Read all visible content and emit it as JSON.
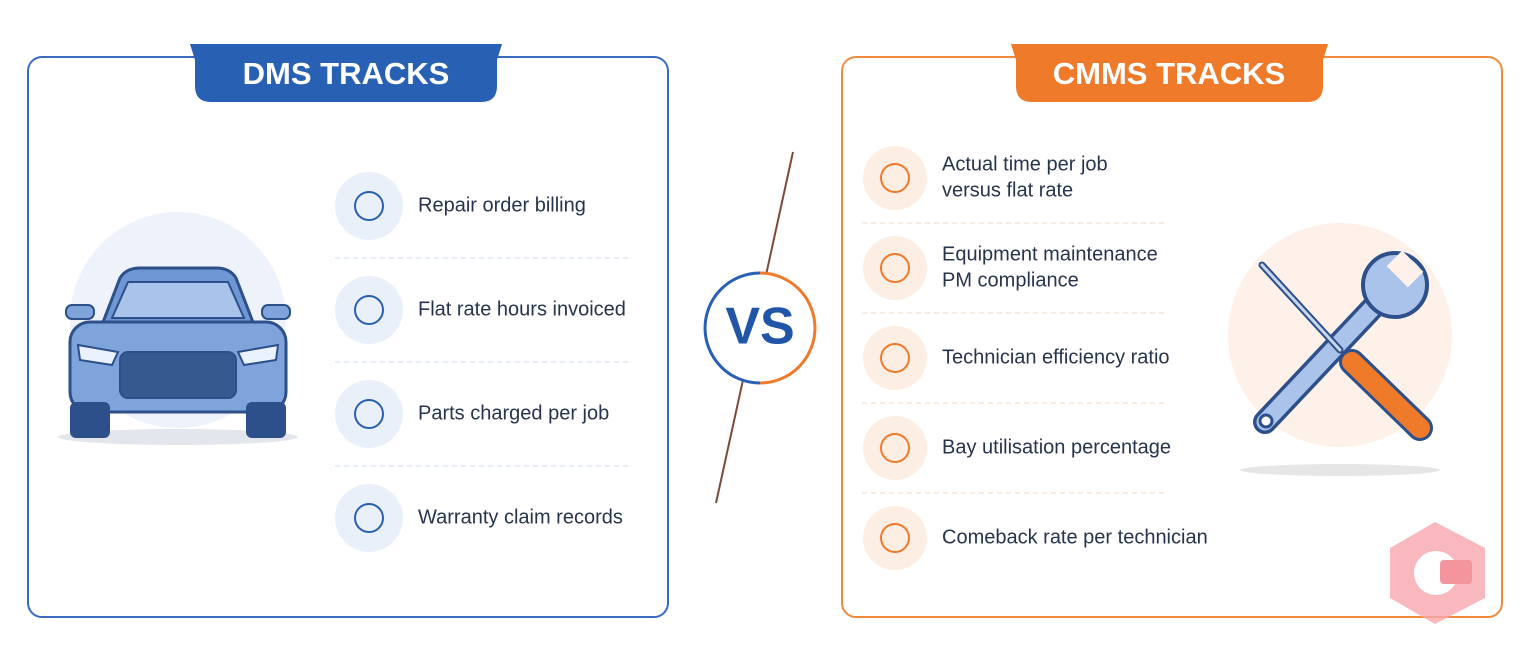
{
  "left": {
    "title": "DMS TRACKS",
    "items": [
      "Repair order billing",
      "Flat rate hours invoiced",
      "Parts charged per job",
      "Warranty claim records"
    ]
  },
  "center": {
    "label": "VS"
  },
  "right": {
    "title": "CMMS TRACKS",
    "items": [
      [
        "Actual time per job",
        "versus flat rate"
      ],
      [
        "Equipment maintenance",
        "PM compliance"
      ],
      [
        "Technician efficiency ratio"
      ],
      [
        "Bay utilisation percentage"
      ],
      [
        "Comeback rate per technician"
      ]
    ]
  }
}
